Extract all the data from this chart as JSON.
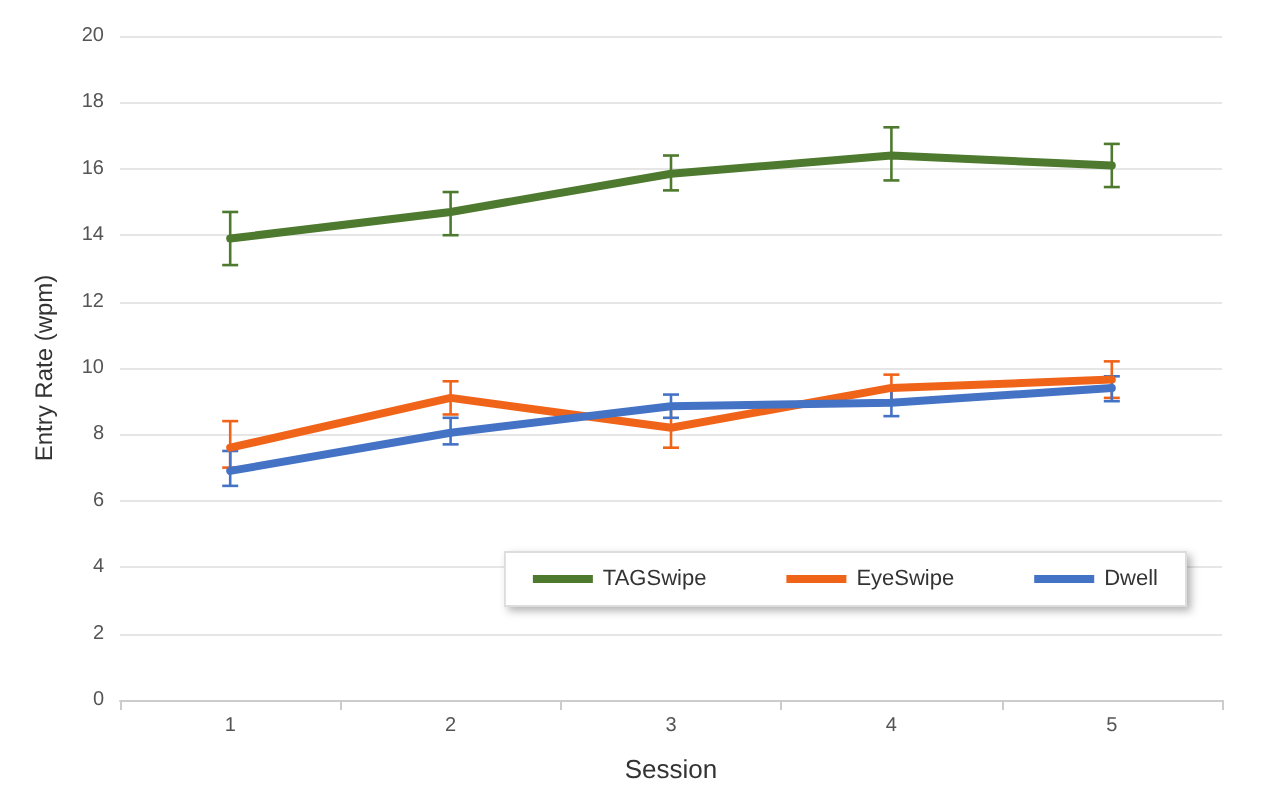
{
  "chart_data": {
    "type": "line",
    "xlabel": "Session",
    "ylabel": "Entry Rate (wpm)",
    "categories": [
      "1",
      "2",
      "3",
      "4",
      "5"
    ],
    "series": [
      {
        "name": "TAGSwipe",
        "color": "#4e7a2f",
        "values": [
          13.9,
          14.7,
          15.85,
          16.4,
          16.1
        ],
        "errors": [
          [
            13.1,
            14.7
          ],
          [
            14.0,
            15.3
          ],
          [
            15.35,
            16.4
          ],
          [
            15.65,
            17.25
          ],
          [
            15.45,
            16.75
          ]
        ]
      },
      {
        "name": "EyeSwipe",
        "color": "#f0641a",
        "values": [
          7.6,
          9.1,
          8.2,
          9.4,
          9.65
        ],
        "errors": [
          [
            7.0,
            8.4
          ],
          [
            8.6,
            9.6
          ],
          [
            7.6,
            8.8
          ],
          [
            9.0,
            9.8
          ],
          [
            9.1,
            10.2
          ]
        ]
      },
      {
        "name": "Dwell",
        "color": "#4472c4",
        "values": [
          6.9,
          8.05,
          8.85,
          8.95,
          9.4
        ],
        "errors": [
          [
            6.45,
            7.5
          ],
          [
            7.7,
            8.5
          ],
          [
            8.5,
            9.2
          ],
          [
            8.55,
            9.35
          ],
          [
            9.0,
            9.75
          ]
        ]
      }
    ],
    "ylim": [
      0,
      20
    ],
    "yticks": [
      0,
      2,
      4,
      6,
      8,
      10,
      12,
      14,
      16,
      18,
      20
    ],
    "grid": "y",
    "legend": "bottom right",
    "marker": "none",
    "line_style": "solid"
  }
}
